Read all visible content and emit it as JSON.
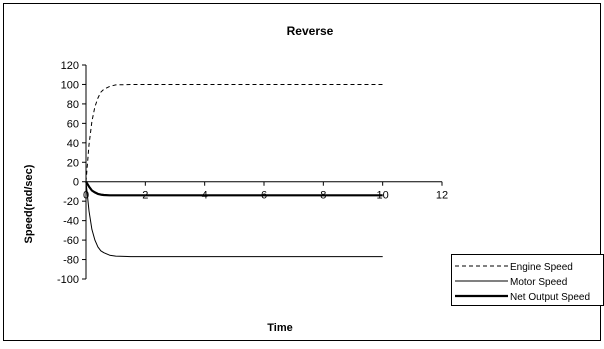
{
  "chart_data": {
    "type": "line",
    "title": "Reverse",
    "xlabel": "Time",
    "ylabel": "Speed(rad/sec)",
    "xlim": [
      0,
      12
    ],
    "ylim": [
      -100,
      120
    ],
    "xticks": [
      0,
      2,
      4,
      6,
      8,
      10,
      12
    ],
    "yticks": [
      -100,
      -80,
      -60,
      -40,
      -20,
      0,
      20,
      40,
      60,
      80,
      100,
      120
    ],
    "grid": false,
    "legend_position": "right",
    "series": [
      {
        "name": "Engine Speed",
        "style": "dashed",
        "color": "#000000",
        "x": [
          0,
          0.1,
          0.2,
          0.3,
          0.4,
          0.5,
          0.6,
          0.8,
          1.0,
          1.5,
          2,
          4,
          6,
          8,
          10
        ],
        "y": [
          0,
          38,
          62,
          77,
          86,
          92,
          95,
          98,
          99.5,
          100,
          100,
          100,
          100,
          100,
          100
        ]
      },
      {
        "name": "Motor Speed",
        "style": "thin",
        "color": "#000000",
        "x": [
          0,
          0.1,
          0.2,
          0.3,
          0.4,
          0.5,
          0.6,
          0.8,
          1.0,
          1.5,
          2,
          4,
          6,
          8,
          10
        ],
        "y": [
          0,
          -30,
          -49,
          -60,
          -67,
          -71,
          -73,
          -75.5,
          -76.5,
          -77,
          -77,
          -77,
          -77,
          -77,
          -77
        ]
      },
      {
        "name": "Net Output Speed",
        "style": "thick",
        "color": "#000000",
        "x": [
          0,
          0.1,
          0.2,
          0.3,
          0.4,
          0.5,
          0.6,
          0.8,
          1.0,
          1.5,
          2,
          4,
          6,
          8,
          10
        ],
        "y": [
          0,
          -5,
          -9,
          -11,
          -12.5,
          -13.2,
          -13.6,
          -14,
          -14,
          -14,
          -14,
          -14,
          -14,
          -14,
          -14
        ]
      }
    ]
  }
}
